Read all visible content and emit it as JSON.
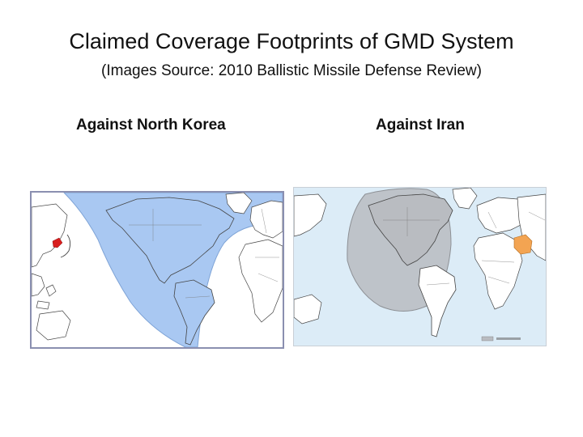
{
  "slide": {
    "title": "Claimed Coverage Footprints of GMD System",
    "subtitle": "(Images Source: 2010 Ballistic Missile Defense Review)"
  },
  "maps": [
    {
      "caption": "Against North Korea",
      "threat_region": "North Korea",
      "coverage_color": "#a9c8f2",
      "threat_color": "#d81e1e",
      "ocean_color": "#ffffff"
    },
    {
      "caption": "Against Iran",
      "threat_region": "Iran",
      "coverage_color": "#b9bcc1",
      "threat_color": "#f3a452",
      "ocean_color": "#dcecf7"
    }
  ]
}
